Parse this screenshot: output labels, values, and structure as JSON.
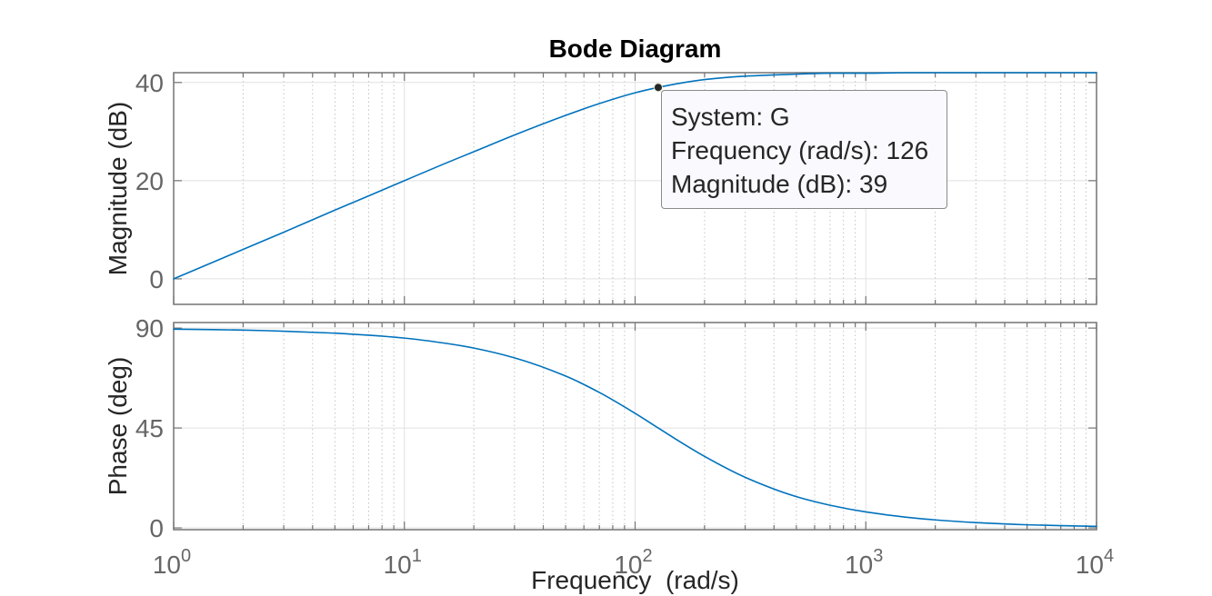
{
  "colors": {
    "line": "#0072BD",
    "axes": "#737373",
    "grid": "#e1e1e1",
    "minor_grid": "#c4c4c4",
    "tick_label": "#666666",
    "label": "#262626",
    "title": "#000000",
    "datatip_background": "#f9f9fe",
    "datatip_border": "#8a8a8a",
    "datatip_text": "#262626",
    "marker": "#262626"
  },
  "chart_data": [
    {
      "type": "line",
      "title": "Bode Diagram",
      "ylabel": "Magnitude (dB)",
      "xscale": "log",
      "xlim": [
        1,
        10000
      ],
      "ylim": [
        -5.2,
        42
      ],
      "yticks": [
        0,
        20,
        40
      ],
      "grid": true,
      "minor_grid": true,
      "series": [
        {
          "x": [
            1,
            1.5,
            2,
            3,
            5,
            7,
            10,
            15,
            20,
            30,
            50,
            70,
            100,
            126,
            150,
            200,
            300,
            500,
            700,
            1000,
            1500,
            2000,
            3000,
            5000,
            7000,
            10000
          ],
          "y": [
            0.0,
            3.5,
            6.0,
            9.5,
            14.0,
            16.9,
            20.0,
            23.5,
            25.9,
            29.3,
            33.3,
            35.7,
            37.9,
            39.0,
            39.7,
            40.6,
            41.3,
            41.7,
            41.9,
            41.9,
            42.0,
            42.0,
            42.0,
            42.0,
            42.0,
            42.0
          ]
        }
      ],
      "datatip": {
        "system_label": "System:",
        "system": "G",
        "x_label": "Frequency (rad/s):",
        "x": 126,
        "y_label": "Magnitude (dB):",
        "y": 39
      }
    },
    {
      "type": "line",
      "xlabel": "Frequency  (rad/s)",
      "ylabel": "Phase (deg)",
      "xscale": "log",
      "xlim": [
        1,
        10000
      ],
      "ylim": [
        -0.8,
        92.5
      ],
      "yticks": [
        0,
        45,
        90
      ],
      "xticks": [
        {
          "value": 1,
          "base": "10",
          "exp": "0"
        },
        {
          "value": 10,
          "base": "10",
          "exp": "1"
        },
        {
          "value": 100,
          "base": "10",
          "exp": "2"
        },
        {
          "value": 1000,
          "base": "10",
          "exp": "3"
        },
        {
          "value": 10000,
          "base": "10",
          "exp": "4"
        }
      ],
      "grid": true,
      "minor_grid": true,
      "series": [
        {
          "x": [
            1,
            1.5,
            2,
            3,
            5,
            7,
            10,
            15,
            20,
            30,
            50,
            70,
            100,
            126,
            150,
            200,
            300,
            500,
            700,
            1000,
            1500,
            2000,
            3000,
            5000,
            7000,
            10000
          ],
          "y": [
            89.5,
            89.3,
            89.1,
            88.6,
            87.7,
            86.8,
            85.5,
            83.2,
            81.0,
            76.6,
            68.4,
            61.0,
            51.6,
            45.0,
            40.0,
            32.2,
            22.8,
            14.1,
            10.2,
            7.2,
            4.8,
            3.6,
            2.4,
            1.4,
            1.0,
            0.7
          ]
        }
      ]
    }
  ]
}
